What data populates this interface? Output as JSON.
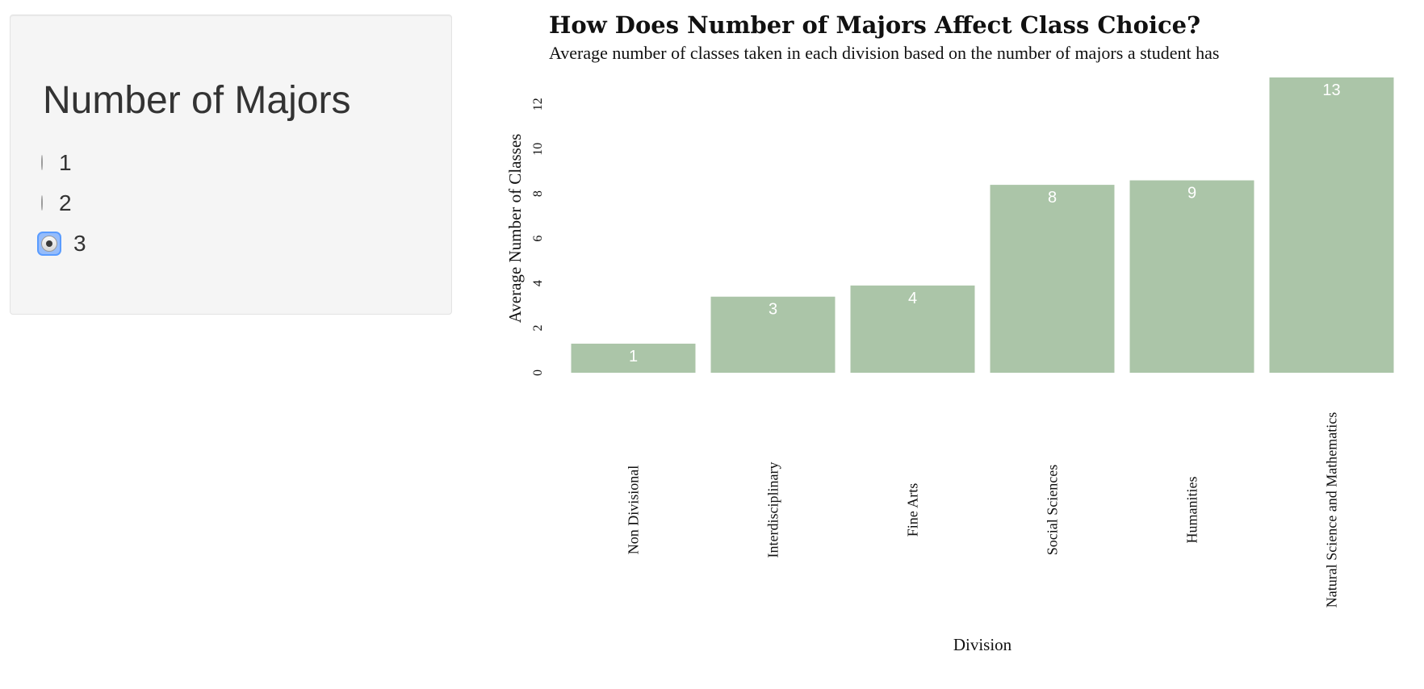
{
  "sidebar": {
    "heading": "Number of Majors",
    "options": [
      {
        "label": "1",
        "selected": false
      },
      {
        "label": "2",
        "selected": false
      },
      {
        "label": "3",
        "selected": true
      }
    ]
  },
  "chart_data": {
    "type": "bar",
    "title": "How Does Number of Majors Affect Class Choice?",
    "subtitle": "Average number of classes taken in each division based on the number of majors a student has",
    "xlabel": "Division",
    "ylabel": "Average Number of Classes",
    "categories": [
      "Non Divisional",
      "Interdisciplinary",
      "Fine Arts",
      "Social Sciences",
      "Humanities",
      "Natural Science and Mathematics"
    ],
    "values": [
      1.3,
      3.4,
      3.9,
      8.4,
      8.6,
      13.2
    ],
    "data_labels": [
      "1",
      "3",
      "4",
      "8",
      "9",
      "13"
    ],
    "yticks": [
      0,
      2,
      4,
      6,
      8,
      10,
      12
    ],
    "ylim": [
      0,
      13.2
    ],
    "grid": false,
    "bar_color": "#abc5a8"
  }
}
